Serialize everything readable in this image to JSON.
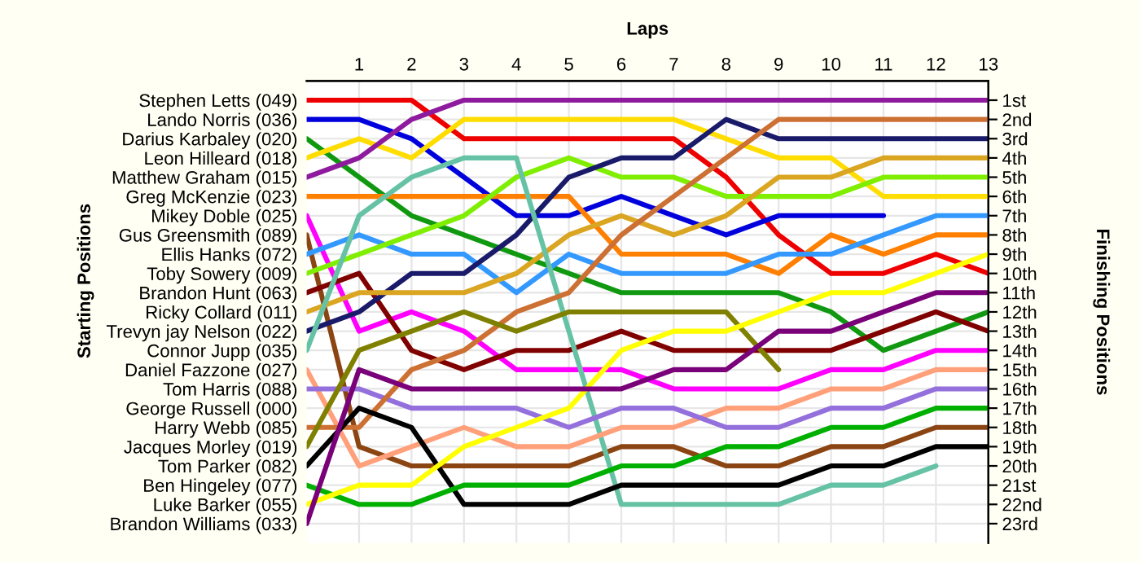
{
  "chart_data": {
    "type": "line",
    "xlabel": "Laps",
    "annotations": [
      "Starting Positions"
    ],
    "y2label": "Finishing Positions",
    "x": [
      0,
      1,
      2,
      3,
      4,
      5,
      6,
      7,
      8,
      9,
      10,
      11,
      12,
      13
    ],
    "xlim": [
      0,
      13
    ],
    "xticks": [
      1,
      2,
      3,
      4,
      5,
      6,
      7,
      8,
      9,
      10,
      11,
      12,
      13
    ],
    "y_categories": [
      "Stephen Letts (049)",
      "Lando Norris (036)",
      "Darius Karbaley (020)",
      "Leon Hilleard (018)",
      "Matthew Graham (015)",
      "Greg McKenzie (023)",
      "Mikey Doble (025)",
      "Gus Greensmith (089)",
      "Ellis Hanks (072)",
      "Toby Sowery (009)",
      "Brandon Hunt (063)",
      "Ricky Collard (011)",
      "Trevyn jay Nelson (022)",
      "Connor Jupp (035)",
      "Daniel Fazzone (027)",
      "Tom Harris (088)",
      "George Russell (000)",
      "Harry Webb (085)",
      "Jacques Morley (019)",
      "Tom Parker (082)",
      "Ben Hingeley (077)",
      "Luke Barker (055)",
      "Brandon Williams (033)"
    ],
    "y2lim": [
      24,
      0
    ],
    "y2ticks": [
      {
        "value": 1,
        "label": "1st"
      },
      {
        "value": 2,
        "label": "2nd"
      },
      {
        "value": 3,
        "label": "3rd"
      },
      {
        "value": 4,
        "label": "4th"
      },
      {
        "value": 5,
        "label": "5th"
      },
      {
        "value": 6,
        "label": "6th"
      },
      {
        "value": 7,
        "label": "7th"
      },
      {
        "value": 8,
        "label": "8th"
      },
      {
        "value": 9,
        "label": "9th"
      },
      {
        "value": 10,
        "label": "10th"
      },
      {
        "value": 11,
        "label": "11th"
      },
      {
        "value": 12,
        "label": "12th"
      },
      {
        "value": 13,
        "label": "13th"
      },
      {
        "value": 14,
        "label": "14th"
      },
      {
        "value": 15,
        "label": "15th"
      },
      {
        "value": 16,
        "label": "16th"
      },
      {
        "value": 17,
        "label": "17th"
      },
      {
        "value": 18,
        "label": "18th"
      },
      {
        "value": 19,
        "label": "19th"
      },
      {
        "value": 20,
        "label": "20th"
      },
      {
        "value": 21,
        "label": "21st"
      },
      {
        "value": 22,
        "label": "22nd"
      },
      {
        "value": 23,
        "label": "23rd"
      }
    ],
    "grid": true,
    "legend": false,
    "marker": "none",
    "line_style": "solid",
    "series": [
      {
        "axis": "y2",
        "color": "#ee0000",
        "values": [
          1,
          1,
          1,
          3,
          3,
          3,
          3,
          3,
          5,
          8,
          10,
          10,
          9,
          10
        ]
      },
      {
        "axis": "y2",
        "color": "#0000dd",
        "values": [
          2,
          2,
          3,
          5,
          7,
          7,
          6,
          7,
          8,
          7,
          7,
          7,
          null,
          null
        ]
      },
      {
        "axis": "y2",
        "color": "#109910",
        "values": [
          3,
          5,
          7,
          8,
          9,
          10,
          11,
          11,
          11,
          11,
          12,
          14,
          13,
          12
        ]
      },
      {
        "axis": "y2",
        "color": "#ffdd00",
        "values": [
          4,
          3,
          4,
          2,
          2,
          2,
          2,
          2,
          3,
          4,
          4,
          6,
          6,
          6
        ]
      },
      {
        "axis": "y2",
        "color": "#8e1a9e",
        "values": [
          5,
          4,
          2,
          1,
          1,
          1,
          1,
          1,
          1,
          1,
          1,
          1,
          1,
          1
        ]
      },
      {
        "axis": "y2",
        "color": "#ff7f00",
        "values": [
          6,
          6,
          6,
          6,
          6,
          6,
          9,
          9,
          9,
          10,
          8,
          9,
          8,
          8
        ]
      },
      {
        "axis": "y2",
        "color": "#ff00ff",
        "values": [
          7,
          13,
          12,
          13,
          15,
          15,
          15,
          16,
          16,
          16,
          15,
          15,
          14,
          14
        ]
      },
      {
        "axis": "y2",
        "color": "#8b4513",
        "values": [
          8,
          19,
          20,
          20,
          20,
          20,
          19,
          19,
          20,
          20,
          19,
          19,
          18,
          18
        ]
      },
      {
        "axis": "y2",
        "color": "#3399ff",
        "values": [
          9,
          8,
          9,
          9,
          11,
          9,
          10,
          10,
          10,
          9,
          9,
          8,
          7,
          7
        ]
      },
      {
        "axis": "y2",
        "color": "#80ee00",
        "values": [
          10,
          9,
          8,
          7,
          5,
          4,
          5,
          5,
          6,
          6,
          6,
          5,
          5,
          5
        ]
      },
      {
        "axis": "y2",
        "color": "#800000",
        "values": [
          11,
          10,
          14,
          15,
          14,
          14,
          13,
          14,
          14,
          14,
          14,
          13,
          12,
          13
        ]
      },
      {
        "axis": "y2",
        "color": "#1a1a6b",
        "values": [
          13,
          12,
          10,
          10,
          8,
          5,
          4,
          4,
          2,
          3,
          3,
          3,
          3,
          3
        ]
      },
      {
        "axis": "y2",
        "color": "#daa520",
        "values": [
          12,
          11,
          11,
          11,
          10,
          8,
          7,
          8,
          7,
          5,
          5,
          4,
          4,
          4
        ]
      },
      {
        "axis": "y2",
        "color": "#66c2a5",
        "values": [
          14,
          7,
          5,
          4,
          4,
          13,
          22,
          22,
          22,
          22,
          21,
          21,
          20,
          null
        ]
      },
      {
        "axis": "y2",
        "color": "#ffa07a",
        "values": [
          15,
          20,
          19,
          18,
          19,
          19,
          18,
          18,
          17,
          17,
          16,
          16,
          15,
          15
        ]
      },
      {
        "axis": "y2",
        "color": "#9370db",
        "values": [
          16,
          16,
          17,
          17,
          17,
          18,
          17,
          17,
          18,
          18,
          17,
          17,
          16,
          16
        ]
      },
      {
        "axis": "y2",
        "color": "#cd7033",
        "values": [
          18,
          18,
          15,
          14,
          12,
          11,
          8,
          6,
          4,
          2,
          2,
          2,
          2,
          2
        ]
      },
      {
        "axis": "y2",
        "color": "#808000",
        "values": [
          19,
          14,
          13,
          12,
          13,
          12,
          12,
          12,
          12,
          15,
          null,
          null,
          null,
          null
        ]
      },
      {
        "axis": "y2",
        "color": "#000000",
        "values": [
          20,
          17,
          18,
          22,
          22,
          22,
          21,
          21,
          21,
          21,
          20,
          20,
          19,
          19
        ]
      },
      {
        "axis": "y2",
        "color": "#00b000",
        "values": [
          21,
          22,
          22,
          21,
          21,
          21,
          20,
          20,
          19,
          19,
          18,
          18,
          17,
          17
        ]
      },
      {
        "axis": "y2",
        "color": "#ffff00",
        "values": [
          22,
          21,
          21,
          19,
          18,
          17,
          14,
          13,
          13,
          12,
          11,
          11,
          10,
          9
        ]
      },
      {
        "axis": "y2",
        "color": "#7a007a",
        "values": [
          23,
          15,
          16,
          16,
          16,
          16,
          16,
          15,
          15,
          13,
          13,
          12,
          11,
          11
        ]
      }
    ]
  }
}
